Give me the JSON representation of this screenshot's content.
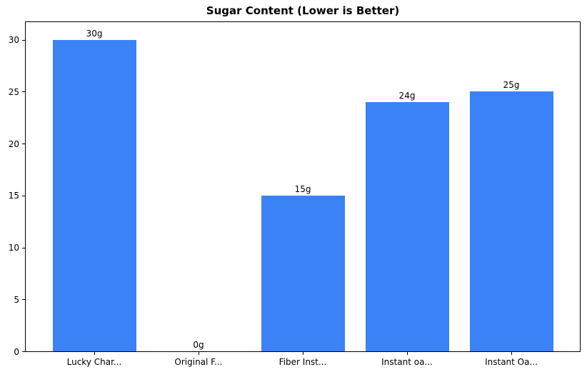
{
  "chart_data": {
    "type": "bar",
    "title": "Sugar Content (Lower is Better)",
    "categories": [
      "Lucky Char...",
      "Original F...",
      "Fiber Inst...",
      "Instant oa...",
      "Instant Oa..."
    ],
    "values": [
      30,
      0,
      15,
      24,
      25
    ],
    "bar_labels": [
      "30g",
      "0g",
      "15g",
      "24g",
      "25g"
    ],
    "xlabel": "",
    "ylabel": "",
    "yticks": [
      0,
      5,
      10,
      15,
      20,
      25,
      30
    ],
    "ylim": [
      0,
      31.7
    ],
    "grid": false,
    "legend": null,
    "bar_color": "#3b82f6",
    "background_color": "#ffffff",
    "spine_color": "#000000"
  }
}
